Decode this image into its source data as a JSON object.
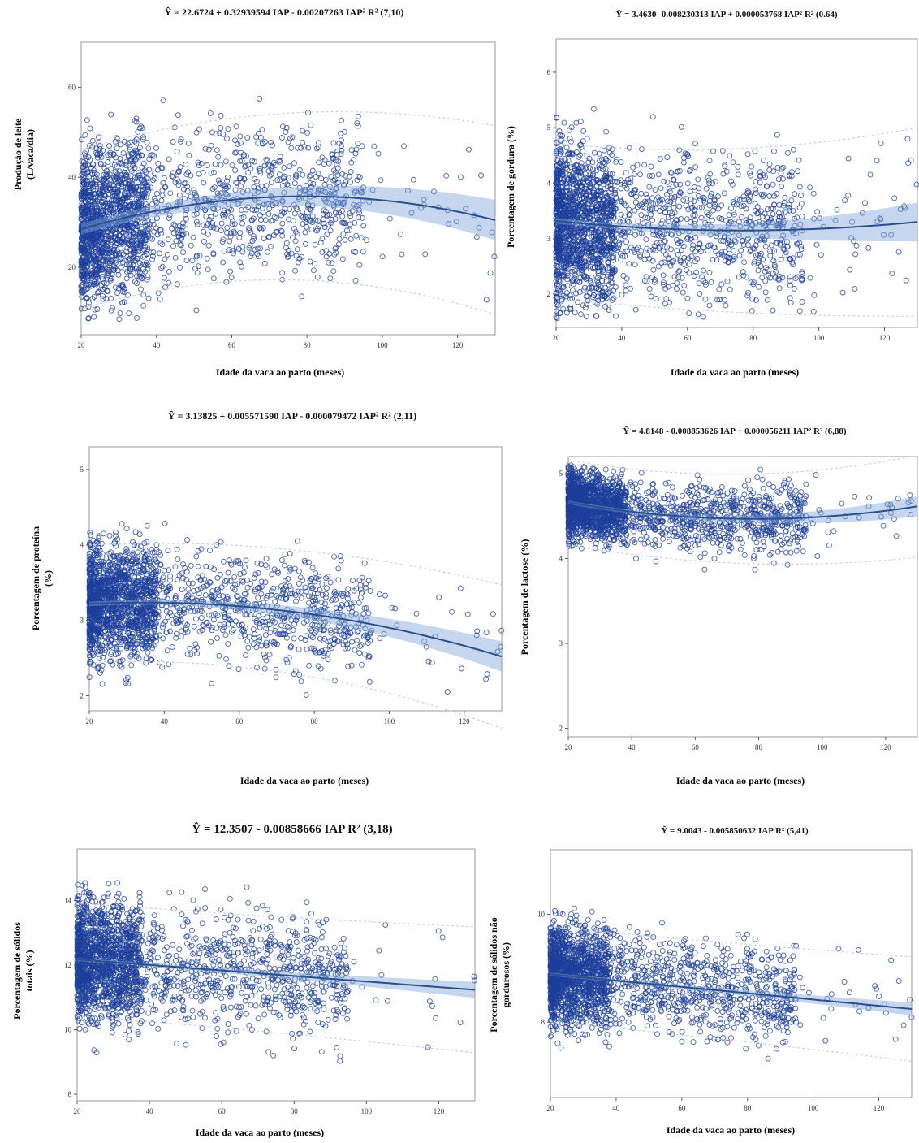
{
  "chart_data": [
    {
      "type": "scatter",
      "title": "Ŷ = 22.6724 + 0.32939594 IAP - 0.00207263 IAP² R² (7,10)",
      "xlabel": "Idade da vaca ao parto (meses)",
      "ylabel_lines": [
        "Produção de leite",
        "(L/vaca/dia)"
      ],
      "xlim": [
        20,
        130
      ],
      "ylim": [
        5,
        70
      ],
      "xticks": [
        20,
        40,
        60,
        80,
        100,
        120
      ],
      "yticks": [
        20,
        40,
        60
      ],
      "fit": {
        "a": 22.6724,
        "b": 0.32939594,
        "c": -0.00207263
      },
      "ci_halfwidth": [
        1.2,
        4.5
      ],
      "pi_halfwidth": 16.5,
      "scatter": {
        "center_sd": 8.5,
        "ymin": 8,
        "ymax": 68
      }
    },
    {
      "type": "scatter",
      "title": "Ŷ = 3.4630 -0.008230313 IAP + 0.000053768 IAP² R² (0.64)",
      "xlabel": "Idade da vaca ao parto (meses)",
      "ylabel_lines": [
        "Porcentagem de gordura (%)"
      ],
      "xlim": [
        20,
        130
      ],
      "ylim": [
        1.4,
        6.6
      ],
      "xticks": [
        20,
        40,
        60,
        80,
        100,
        120
      ],
      "yticks": [
        2,
        3,
        4,
        5,
        6
      ],
      "fit": {
        "a": 3.463,
        "b": -0.008230313,
        "c": 5.3768e-05
      },
      "ci_halfwidth": [
        0.05,
        0.35
      ],
      "pi_halfwidth": 1.35,
      "scatter": {
        "center_sd": 0.7,
        "ymin": 1.5,
        "ymax": 6.5
      }
    },
    {
      "type": "scatter",
      "title": "Ŷ = 3.13825 + 0.005571590 IAP - 0.000079472 IAP² R² (2,11)",
      "xlabel": "Idade da vaca ao parto (meses)",
      "ylabel_lines": [
        "Porcentagem de proteína",
        "(%)"
      ],
      "xlim": [
        20,
        130
      ],
      "ylim": [
        1.8,
        5.3
      ],
      "xticks": [
        20,
        40,
        60,
        80,
        100,
        120
      ],
      "yticks": [
        2,
        3,
        4,
        5
      ],
      "fit": {
        "a": 3.13825,
        "b": 0.00557159,
        "c": -7.9472e-05
      },
      "ci_halfwidth": [
        0.03,
        0.2
      ],
      "pi_halfwidth": 0.75,
      "scatter": {
        "center_sd": 0.38,
        "ymin": 2.0,
        "ymax": 5.2
      }
    },
    {
      "type": "scatter",
      "title": "Ŷ = 4.8148 - 0.008853626 IAP + 0.000056211 IAP² R² (6,88)",
      "xlabel": "Idade da vaca ao parto (meses)",
      "ylabel_lines": [
        "Porcentagem de lactose (%)"
      ],
      "xlim": [
        20,
        130
      ],
      "ylim": [
        1.9,
        5.2
      ],
      "xticks": [
        20,
        40,
        60,
        80,
        100,
        120
      ],
      "yticks": [
        2,
        3,
        4,
        5
      ],
      "fit": {
        "a": 4.8148,
        "b": -0.008853626,
        "c": 5.6211e-05
      },
      "ci_halfwidth": [
        0.02,
        0.12
      ],
      "pi_halfwidth": 0.48,
      "scatter": {
        "center_sd": 0.2,
        "ymin": 3.3,
        "ymax": 5.1
      }
    },
    {
      "type": "scatter",
      "title": "Ŷ = 12.3507 - 0.00858666 IAP R² (3,18)",
      "xlabel": "Idade da vaca ao parto (meses)",
      "ylabel_lines": [
        "Porcentagem de sólidos",
        "totais (%)"
      ],
      "xlim": [
        20,
        130
      ],
      "ylim": [
        7.8,
        15.6
      ],
      "xticks": [
        20,
        40,
        60,
        80,
        100,
        120
      ],
      "yticks": [
        8,
        10,
        12,
        14
      ],
      "fit": {
        "a": 12.3507,
        "b": -0.00858666,
        "c": 0
      },
      "ci_halfwidth": [
        0.05,
        0.25
      ],
      "pi_halfwidth": 1.7,
      "scatter": {
        "center_sd": 0.95,
        "ymin": 8.4,
        "ymax": 15.5
      }
    },
    {
      "type": "scatter",
      "title": "Ŷ = 9.0043 - 0.005850632 IAP R² (5,41)",
      "xlabel": "Idade da vaca ao parto (meses)",
      "ylabel_lines": [
        "Porcentagem de sólidos não",
        "gordurosos (%)"
      ],
      "xlim": [
        20,
        130
      ],
      "ylim": [
        6.6,
        11.2
      ],
      "xticks": [
        20,
        40,
        60,
        80,
        100,
        120
      ],
      "yticks": [
        8,
        10
      ],
      "fit": {
        "a": 9.0043,
        "b": -0.005850632,
        "c": 0
      },
      "ci_halfwidth": [
        0.03,
        0.12
      ],
      "pi_halfwidth": 0.85,
      "scatter": {
        "center_sd": 0.45,
        "ymin": 6.9,
        "ymax": 11.0
      }
    }
  ]
}
